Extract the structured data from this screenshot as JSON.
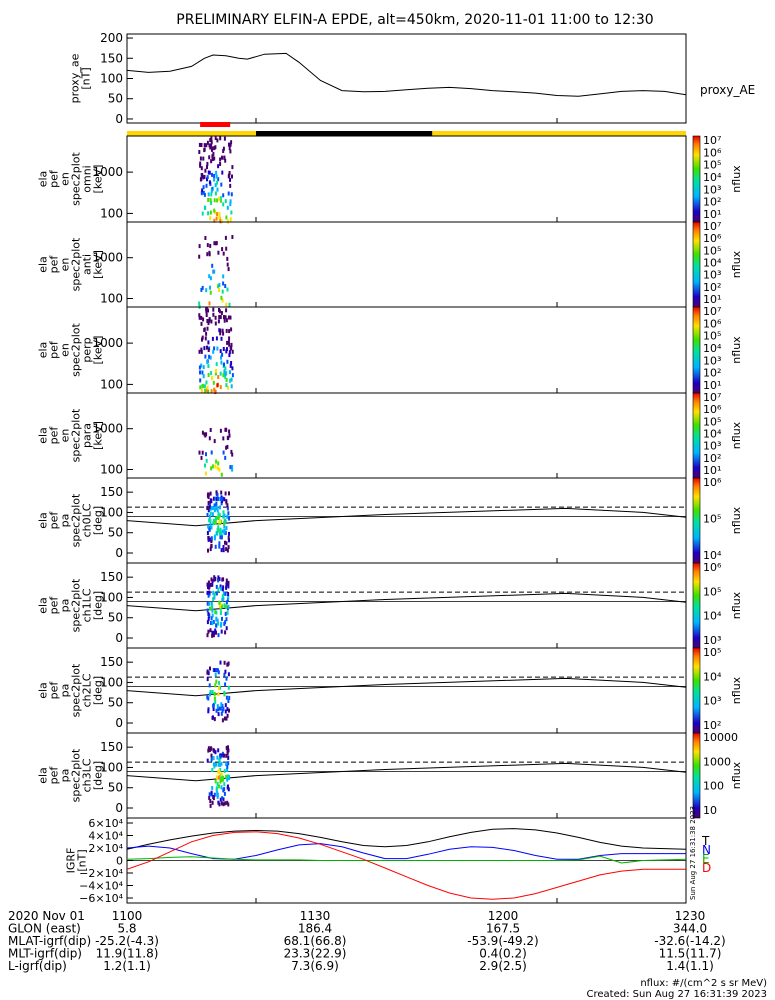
{
  "title": "PRELIMINARY ELFIN-A EPDE, alt=450km, 2020-11-01 11:00 to 12:30",
  "colors": {
    "ae_line": "#000000",
    "bar_yellow": "#FFD700",
    "bar_black": "#000000",
    "bar_red": "#FF0000",
    "T": "#000000",
    "N": "#0000FF",
    "E": "#00B000",
    "D": "#FF0000"
  },
  "chart_data": [
    {
      "type": "line",
      "id": "proxy_ae",
      "ylabel": [
        "proxy_ae",
        "[nT]"
      ],
      "series_label": "proxy_AE",
      "ylim": [
        -10,
        210
      ],
      "yticks": [
        200,
        150,
        100,
        50,
        0
      ],
      "x": [
        1100,
        1105,
        1110,
        1115,
        1118,
        1120,
        1123,
        1126,
        1128,
        1132,
        1137,
        1140,
        1145,
        1150,
        1155,
        1160,
        1165,
        1170,
        1175,
        1180,
        1185,
        1190,
        1195,
        1200,
        1205,
        1210,
        1215,
        1220,
        1225,
        1230
      ],
      "values": [
        120,
        115,
        118,
        130,
        150,
        158,
        156,
        150,
        148,
        160,
        162,
        140,
        95,
        70,
        67,
        68,
        72,
        76,
        78,
        75,
        70,
        67,
        64,
        58,
        56,
        62,
        68,
        70,
        68,
        60
      ]
    },
    {
      "type": "bar",
      "id": "science_zone_bar",
      "segments": [
        {
          "x0": 1100,
          "x1": 1130,
          "color": "#FFD700"
        },
        {
          "x0": 1130,
          "x1": 1171,
          "color": "#000000"
        },
        {
          "x0": 1171,
          "x1": 1230,
          "color": "#FFD700"
        }
      ],
      "red_segment": {
        "x0": 1117,
        "x1": 1124
      }
    },
    {
      "type": "heatmap",
      "id": "en_omni",
      "ylabel": [
        "ela",
        "pef",
        "en",
        "spec2plot",
        "omni",
        "[keV]"
      ],
      "ytick_labels": [
        "1000",
        "100"
      ],
      "colorbar": {
        "label": "nflux",
        "ticks": [
          "10⁷",
          "10⁶",
          "10⁵",
          "10⁴",
          "10³",
          "10²",
          "10¹"
        ]
      },
      "x_range": [
        1117,
        1124
      ]
    },
    {
      "type": "heatmap",
      "id": "en_anti",
      "ylabel": [
        "ela",
        "pef",
        "en",
        "spec2plot",
        "anti",
        "[keV]"
      ],
      "ytick_labels": [
        "1000",
        "100"
      ],
      "colorbar": {
        "label": "nflux",
        "ticks": [
          "10⁷",
          "10⁶",
          "10⁵",
          "10⁴",
          "10³",
          "10²",
          "10¹"
        ]
      },
      "x_range": [
        1117,
        1124
      ]
    },
    {
      "type": "heatmap",
      "id": "en_perp",
      "ylabel": [
        "ela",
        "pef",
        "en",
        "spec2plot",
        "perp",
        "[keV]"
      ],
      "ytick_labels": [
        "1000",
        "100"
      ],
      "colorbar": {
        "label": "nflux",
        "ticks": [
          "10⁷",
          "10⁶",
          "10⁵",
          "10⁴",
          "10³",
          "10²",
          "10¹"
        ]
      },
      "x_range": [
        1117,
        1124
      ]
    },
    {
      "type": "heatmap",
      "id": "en_para",
      "ylabel": [
        "ela",
        "pef",
        "en",
        "spec2plot",
        "para",
        "[keV]"
      ],
      "ytick_labels": [
        "1000",
        "100"
      ],
      "colorbar": {
        "label": "nflux",
        "ticks": [
          "10⁷",
          "10⁶",
          "10⁵",
          "10⁴",
          "10³",
          "10²",
          "10¹"
        ]
      },
      "x_range": [
        1117,
        1124
      ]
    },
    {
      "type": "heatmap",
      "id": "pa_ch0",
      "ylabel": [
        "ela",
        "pef",
        "pa",
        "spec2plot",
        "ch0LC",
        "[deg]"
      ],
      "yticks": [
        150,
        100,
        50,
        0
      ],
      "colorbar": {
        "label": "nflux",
        "ticks": [
          "10⁶",
          "10⁵",
          "10⁴"
        ]
      },
      "lc_line": [
        80,
        67,
        80,
        95,
        110,
        100,
        88
      ],
      "alc_line": 113
    },
    {
      "type": "heatmap",
      "id": "pa_ch1",
      "ylabel": [
        "ela",
        "pef",
        "pa",
        "spec2plot",
        "ch1LC",
        "[deg]"
      ],
      "yticks": [
        150,
        100,
        50,
        0
      ],
      "colorbar": {
        "label": "nflux",
        "ticks": [
          "10⁶",
          "10⁵",
          "10⁴",
          "10³"
        ]
      },
      "lc_line": [
        80,
        67,
        80,
        95,
        110,
        100,
        88
      ],
      "alc_line": 113
    },
    {
      "type": "heatmap",
      "id": "pa_ch2",
      "ylabel": [
        "ela",
        "pef",
        "pa",
        "spec2plot",
        "ch2LC",
        "[deg]"
      ],
      "yticks": [
        150,
        100,
        50,
        0
      ],
      "colorbar": {
        "label": "nflux",
        "ticks": [
          "10⁵",
          "10⁴",
          "10³",
          "10²"
        ]
      },
      "lc_line": [
        80,
        67,
        80,
        95,
        110,
        100,
        88
      ],
      "alc_line": 113
    },
    {
      "type": "heatmap",
      "id": "pa_ch3",
      "ylabel": [
        "ela",
        "pef",
        "pa",
        "spec2plot",
        "ch3LC",
        "[deg]"
      ],
      "yticks": [
        150,
        100,
        50,
        0
      ],
      "colorbar": {
        "label": "nflux",
        "ticks": [
          "10000",
          "1000",
          "100",
          "10"
        ]
      },
      "lc_line": [
        80,
        67,
        80,
        95,
        110,
        100,
        88
      ],
      "alc_line": 113
    },
    {
      "type": "line",
      "id": "igrf",
      "ylabel": [
        "IGRF",
        "[nT]"
      ],
      "ylim": [
        -68000,
        68000
      ],
      "ytick_labels": [
        "6×10⁴",
        "4×10⁴",
        "2×10⁴",
        "0",
        "−2×10⁴",
        "−4×10⁴",
        "−6×10⁴"
      ],
      "yticks": [
        60000,
        40000,
        20000,
        0,
        -20000,
        -40000,
        -60000
      ],
      "legend": [
        "T",
        "N",
        "E",
        "D"
      ],
      "side_text": "Sun Aug 27 16:31:38 2023",
      "x": [
        1100,
        1105,
        1110,
        1115,
        1120,
        1125,
        1130,
        1135,
        1140,
        1145,
        1150,
        1155,
        1160,
        1165,
        1170,
        1175,
        1180,
        1185,
        1190,
        1195,
        1200,
        1205,
        1210,
        1215,
        1220,
        1225,
        1230
      ],
      "series": [
        {
          "name": "T",
          "values": [
            18000,
            26000,
            33000,
            39000,
            44000,
            47000,
            48000,
            47000,
            43000,
            37000,
            30000,
            24000,
            22000,
            24000,
            30000,
            38000,
            45000,
            50000,
            51000,
            49000,
            44000,
            37000,
            29000,
            23000,
            20000,
            19000,
            18000
          ]
        },
        {
          "name": "N",
          "values": [
            20000,
            23000,
            20000,
            11000,
            3000,
            2000,
            8000,
            17000,
            25000,
            27000,
            22000,
            12000,
            3000,
            3000,
            10000,
            18000,
            22000,
            21000,
            16000,
            8000,
            2000,
            2000,
            8000,
            11000,
            11000,
            11000,
            11000
          ]
        },
        {
          "name": "E",
          "values": [
            2000,
            3000,
            5000,
            6000,
            4000,
            2000,
            1000,
            1000,
            1000,
            0,
            0,
            0,
            0,
            0,
            0,
            0,
            0,
            0,
            0,
            0,
            0,
            1000,
            7000,
            -4000,
            0,
            1000,
            2000
          ]
        },
        {
          "name": "D",
          "values": [
            -14000,
            -2000,
            14000,
            30000,
            40000,
            45000,
            46000,
            43000,
            36000,
            26000,
            14000,
            2000,
            -12000,
            -26000,
            -40000,
            -52000,
            -60000,
            -62000,
            -60000,
            -53000,
            -43000,
            -33000,
            -23000,
            -17000,
            -14000,
            -14000,
            -14000
          ]
        }
      ]
    }
  ],
  "x_axis": {
    "ticks": [
      1100,
      1130,
      1200,
      1230
    ],
    "tick_labels": [
      "1100",
      "1130",
      "1200",
      "1230"
    ]
  },
  "info_rows": [
    {
      "label": "2020 Nov 01",
      "values": [
        "1100",
        "1130",
        "1200",
        "1230"
      ]
    },
    {
      "label": "GLON (east)",
      "values": [
        "5.8",
        "186.4",
        "167.5",
        "344.0"
      ]
    },
    {
      "label": "MLAT-igrf(dip)",
      "values": [
        "-25.2(-4.3)",
        "68.1(66.8)",
        "-53.9(-49.2)",
        "-32.6(-14.2)"
      ]
    },
    {
      "label": "MLT-igrf(dip)",
      "values": [
        "11.9(11.8)",
        "23.3(22.9)",
        "0.4(0.2)",
        "11.5(11.7)"
      ]
    },
    {
      "label": "L-igrf(dip)",
      "values": [
        "1.2(1.1)",
        "7.3(6.9)",
        "2.9(2.5)",
        "1.4(1.1)"
      ]
    }
  ],
  "footer": {
    "units": "nflux: #/(cm^2 s sr MeV)",
    "created": "Created: Sun Aug 27 16:31:39 2023"
  }
}
